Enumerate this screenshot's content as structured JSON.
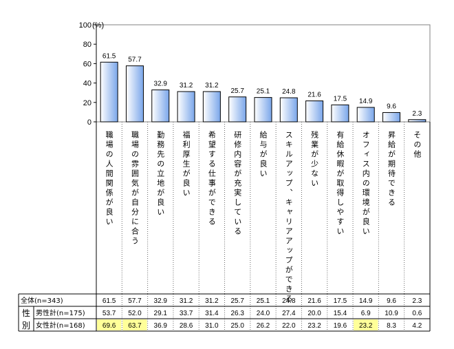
{
  "chart_data": {
    "type": "bar",
    "y_unit": "(%)",
    "ylim": [
      0,
      100
    ],
    "yticks": [
      0,
      20,
      40,
      60,
      80,
      100
    ],
    "grid": false,
    "categories": [
      "職場の人間関係が良い",
      "職場の雰囲気が自分に合う",
      "勤務先の立地が良い",
      "福利厚生が良い",
      "希望する仕事ができる",
      "研修内容が充実している",
      "給与が良い",
      "スキルアップ、キャリアアップができる",
      "残業が少ない",
      "有給休暇が取得しやすい",
      "オフィス内の環境が良い",
      "昇給が期待できる",
      "その他"
    ],
    "values": [
      61.5,
      57.7,
      32.9,
      31.2,
      31.2,
      25.7,
      25.1,
      24.8,
      21.6,
      17.5,
      14.9,
      9.6,
      2.3
    ],
    "bar_fill_top": "#e9f1ff",
    "bar_fill_bottom": "#7aa6ea",
    "table": {
      "group_label": "性別",
      "rows": [
        {
          "label": "全体(n=343)",
          "values": [
            "61.5",
            "57.7",
            "32.9",
            "31.2",
            "31.2",
            "25.7",
            "25.1",
            "24.8",
            "21.6",
            "17.5",
            "14.9",
            "9.6",
            "2.3"
          ],
          "highlight": []
        },
        {
          "label": "男性計(n=175)",
          "values": [
            "53.7",
            "52.0",
            "29.1",
            "33.7",
            "31.4",
            "26.3",
            "24.0",
            "27.4",
            "20.0",
            "15.4",
            "6.9",
            "10.9",
            "0.6"
          ],
          "highlight": []
        },
        {
          "label": "女性計(n=168)",
          "values": [
            "69.6",
            "63.7",
            "36.9",
            "28.6",
            "31.0",
            "25.0",
            "26.2",
            "22.0",
            "23.2",
            "19.6",
            "23.2",
            "8.3",
            "4.2"
          ],
          "highlight": [
            0,
            1,
            10
          ]
        }
      ],
      "highlight_color": "#ffff99"
    }
  }
}
